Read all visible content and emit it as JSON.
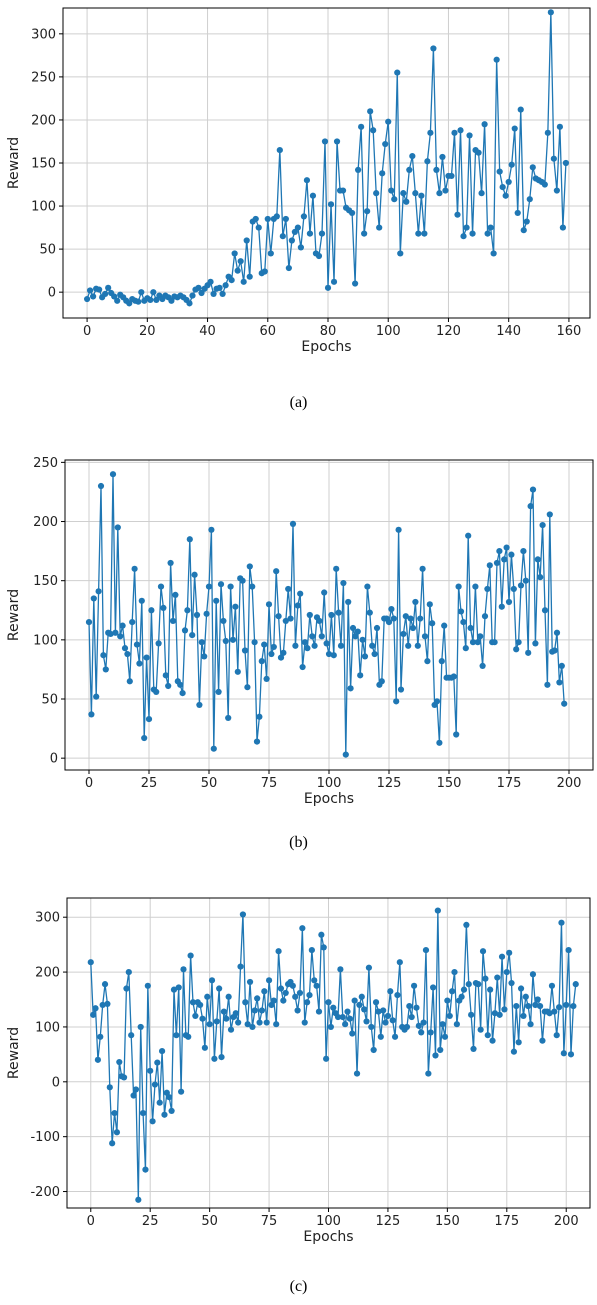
{
  "colors": {
    "line": "#1f77b4",
    "grid": "#cfcfcf",
    "axis": "#000000",
    "text": "#222222"
  },
  "chart_data": [
    {
      "type": "line",
      "caption": "(a)",
      "xlabel": "Epochs",
      "ylabel": "Reward",
      "xlim": [
        -8,
        167
      ],
      "ylim": [
        -30,
        330
      ],
      "xticks": [
        0,
        20,
        40,
        60,
        80,
        100,
        120,
        140,
        160
      ],
      "yticks": [
        0,
        50,
        100,
        150,
        200,
        250,
        300
      ],
      "grid": true,
      "markers": true,
      "x_start": 0,
      "values": [
        -8,
        2,
        -5,
        4,
        3,
        -6,
        -2,
        5,
        -1,
        -5,
        -10,
        -3,
        -6,
        -10,
        -13,
        -8,
        -10,
        -11,
        0,
        -10,
        -7,
        -9,
        0,
        -9,
        -4,
        -8,
        -4,
        -6,
        -10,
        -5,
        -6,
        -4,
        -6,
        -9,
        -13,
        -4,
        3,
        5,
        -1,
        4,
        8,
        12,
        -2,
        4,
        5,
        -2,
        8,
        18,
        14,
        45,
        25,
        36,
        12,
        60,
        18,
        82,
        85,
        75,
        22,
        24,
        85,
        45,
        85,
        88,
        165,
        65,
        85,
        28,
        60,
        70,
        75,
        52,
        88,
        130,
        68,
        112,
        45,
        42,
        68,
        175,
        5,
        102,
        12,
        175,
        118,
        118,
        98,
        95,
        92,
        10,
        142,
        192,
        68,
        94,
        210,
        188,
        115,
        75,
        138,
        172,
        198,
        118,
        108,
        255,
        45,
        115,
        105,
        142,
        158,
        115,
        68,
        112,
        68,
        152,
        185,
        283,
        142,
        115,
        157,
        118,
        135,
        135,
        185,
        90,
        188,
        65,
        75,
        182,
        68,
        165,
        162,
        115,
        195,
        68,
        75,
        45,
        270,
        140,
        122,
        112,
        128,
        148,
        190,
        92,
        212,
        72,
        82,
        108,
        145,
        132,
        130,
        128,
        125,
        185,
        325,
        155,
        118,
        192,
        75,
        150
      ]
    },
    {
      "type": "line",
      "caption": "(b)",
      "xlabel": "Epochs",
      "ylabel": "Reward",
      "xlim": [
        -10,
        210
      ],
      "ylim": [
        -10,
        252
      ],
      "xticks": [
        0,
        25,
        50,
        75,
        100,
        125,
        150,
        175,
        200
      ],
      "yticks": [
        0,
        50,
        100,
        150,
        200,
        250
      ],
      "grid": true,
      "markers": true,
      "x_start": 0,
      "values": [
        115,
        37,
        135,
        52,
        141,
        230,
        87,
        75,
        106,
        105,
        240,
        106,
        195,
        103,
        112,
        93,
        88,
        65,
        115,
        160,
        96,
        80,
        133,
        17,
        85,
        33,
        125,
        58,
        56,
        97,
        145,
        127,
        70,
        61,
        165,
        116,
        138,
        65,
        62,
        55,
        108,
        125,
        185,
        104,
        155,
        121,
        45,
        98,
        86,
        122,
        145,
        193,
        8,
        133,
        56,
        147,
        116,
        99,
        34,
        145,
        100,
        128,
        73,
        152,
        150,
        91,
        60,
        162,
        145,
        98,
        14,
        35,
        82,
        96,
        67,
        130,
        88,
        94,
        158,
        120,
        85,
        89,
        116,
        143,
        118,
        198,
        95,
        129,
        139,
        77,
        98,
        93,
        121,
        103,
        95,
        119,
        116,
        103,
        140,
        97,
        88,
        121,
        87,
        160,
        123,
        95,
        148,
        3,
        132,
        59,
        110,
        103,
        107,
        70,
        100,
        86,
        145,
        123,
        95,
        88,
        110,
        62,
        65,
        118,
        118,
        115,
        126,
        118,
        48,
        193,
        58,
        105,
        120,
        95,
        118,
        110,
        132,
        95,
        118,
        160,
        103,
        82,
        130,
        114,
        45,
        48,
        13,
        82,
        112,
        68,
        68,
        68,
        69,
        20,
        145,
        124,
        115,
        93,
        188,
        110,
        98,
        145,
        98,
        103,
        78,
        120,
        143,
        163,
        98,
        98,
        165,
        175,
        128,
        168,
        178,
        132,
        172,
        143,
        92,
        98,
        146,
        175,
        150,
        89,
        213,
        227,
        97,
        168,
        153,
        197,
        125,
        62,
        206,
        90,
        91,
        106,
        64,
        78,
        46
      ]
    },
    {
      "type": "line",
      "caption": "(c)",
      "xlabel": "Epochs",
      "ylabel": "Reward",
      "xlim": [
        -10,
        210
      ],
      "ylim": [
        -230,
        335
      ],
      "xticks": [
        0,
        25,
        50,
        75,
        100,
        125,
        150,
        175,
        200
      ],
      "yticks": [
        -200,
        -100,
        0,
        100,
        200,
        300
      ],
      "grid": true,
      "markers": true,
      "x_start": 0,
      "values": [
        218,
        122,
        134,
        40,
        82,
        140,
        178,
        142,
        -10,
        -112,
        -57,
        -92,
        36,
        10,
        8,
        170,
        200,
        85,
        -25,
        -14,
        -215,
        100,
        -57,
        -160,
        175,
        20,
        -72,
        -5,
        35,
        -38,
        56,
        -60,
        -20,
        -28,
        -53,
        168,
        85,
        172,
        -18,
        205,
        85,
        82,
        230,
        145,
        120,
        145,
        140,
        115,
        62,
        155,
        105,
        185,
        42,
        110,
        170,
        45,
        128,
        115,
        155,
        95,
        118,
        125,
        108,
        210,
        305,
        145,
        105,
        182,
        100,
        130,
        152,
        108,
        130,
        165,
        108,
        185,
        140,
        148,
        105,
        238,
        170,
        148,
        162,
        178,
        182,
        175,
        155,
        130,
        162,
        280,
        108,
        145,
        158,
        240,
        185,
        175,
        128,
        268,
        245,
        42,
        145,
        100,
        135,
        125,
        118,
        205,
        118,
        105,
        128,
        115,
        88,
        148,
        15,
        140,
        155,
        132,
        110,
        208,
        100,
        58,
        145,
        128,
        82,
        130,
        108,
        120,
        165,
        112,
        82,
        158,
        218,
        100,
        95,
        100,
        138,
        118,
        175,
        135,
        102,
        90,
        108,
        240,
        15,
        90,
        172,
        48,
        312,
        58,
        105,
        82,
        148,
        120,
        165,
        200,
        105,
        148,
        155,
        168,
        286,
        178,
        122,
        60,
        180,
        178,
        95,
        238,
        188,
        85,
        168,
        75,
        125,
        190,
        122,
        228,
        132,
        200,
        235,
        180,
        55,
        138,
        72,
        170,
        120,
        155,
        138,
        105,
        196,
        140,
        150,
        138,
        75,
        128,
        128,
        125,
        175,
        128,
        85,
        136,
        290,
        52,
        140,
        240,
        50,
        138,
        178
      ]
    }
  ]
}
